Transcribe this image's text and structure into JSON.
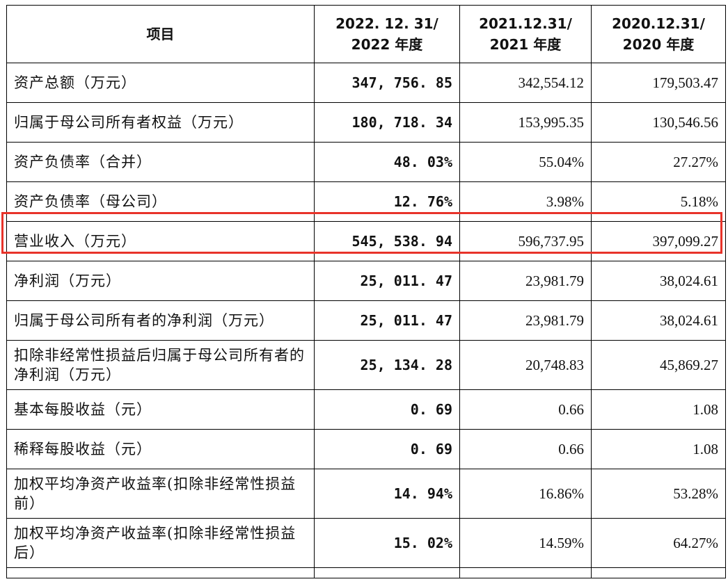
{
  "table": {
    "headers": {
      "item": "项目",
      "col2022_line1": "2022. 12. 31/",
      "col2022_line2": "2022 年度",
      "col2021_line1": "2021.12.31/",
      "col2021_line2": "2021 年度",
      "col2020_line1": "2020.12.31/",
      "col2020_line2": "2020 年度"
    },
    "rows": [
      {
        "label": "资产总额（万元）",
        "y2022": "347, 756. 85",
        "y2021": "342,554.12",
        "y2020": "179,503.47"
      },
      {
        "label": "归属于母公司所有者权益（万元）",
        "y2022": "180, 718. 34",
        "y2021": "153,995.35",
        "y2020": "130,546.56"
      },
      {
        "label": "资产负债率（合并）",
        "y2022": "48. 03%",
        "y2021": "55.04%",
        "y2020": "27.27%"
      },
      {
        "label": "资产负债率（母公司）",
        "y2022": "12. 76%",
        "y2021": "3.98%",
        "y2020": "5.18%"
      },
      {
        "label": "营业收入（万元）",
        "y2022": "545, 538. 94",
        "y2021": "596,737.95",
        "y2020": "397,099.27"
      },
      {
        "label": "净利润（万元）",
        "y2022": "25, 011. 47",
        "y2021": "23,981.79",
        "y2020": "38,024.61"
      },
      {
        "label": "归属于母公司所有者的净利润（万元）",
        "y2022": "25, 011. 47",
        "y2021": "23,981.79",
        "y2020": "38,024.61"
      },
      {
        "label": "扣除非经常性损益后归属于母公司所有者的净利润（万元）",
        "y2022": "25, 134. 28",
        "y2021": "20,748.83",
        "y2020": "45,869.27"
      },
      {
        "label": "基本每股收益（元）",
        "y2022": "0. 69",
        "y2021": "0.66",
        "y2020": "1.08"
      },
      {
        "label": "稀释每股收益（元）",
        "y2022": "0. 69",
        "y2021": "0.66",
        "y2020": "1.08"
      },
      {
        "label": "加权平均净资产收益率(扣除非经常性损益前）",
        "y2022": "14. 94%",
        "y2021": "16.86%",
        "y2020": "53.28%"
      },
      {
        "label": "加权平均净资产收益率(扣除非经常性损益后）",
        "y2022": "15. 02%",
        "y2021": "14.59%",
        "y2020": "64.27%"
      }
    ]
  },
  "highlight": {
    "row_label": "营业收入（万元）",
    "color": "#e8332a"
  }
}
